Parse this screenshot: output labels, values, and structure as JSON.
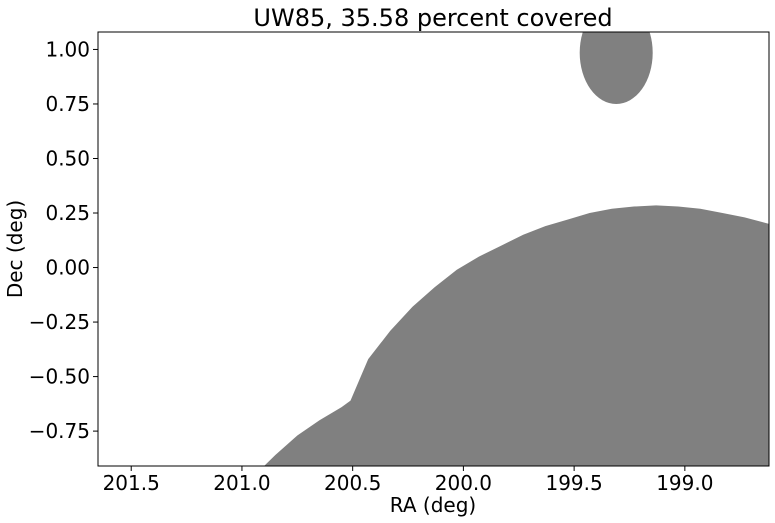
{
  "chart_data": {
    "type": "area",
    "title": "UW85, 35.58 percent covered",
    "xlabel": "RA (deg)",
    "ylabel": "Dec (deg)",
    "x_inverted": true,
    "xlim": [
      201.65,
      198.62
    ],
    "ylim": [
      -0.91,
      1.08
    ],
    "xticks": [
      201.5,
      201.0,
      200.5,
      200.0,
      199.5,
      199.0
    ],
    "xtick_labels": [
      "201.5",
      "201.0",
      "200.5",
      "200.0",
      "199.5",
      "199.0"
    ],
    "yticks": [
      1.0,
      0.75,
      0.5,
      0.25,
      0.0,
      -0.25,
      -0.5,
      -0.75
    ],
    "ytick_labels": [
      "1.00",
      "0.75",
      "0.50",
      "0.25",
      "0.00",
      "−0.25",
      "−0.50",
      "−0.75"
    ],
    "grid": false,
    "fill_color": "#808080",
    "covered_region": {
      "ra": [
        200.9,
        200.85,
        200.75,
        200.65,
        200.55,
        200.51,
        200.43,
        200.33,
        200.23,
        200.13,
        200.03,
        199.93,
        199.83,
        199.73,
        199.63,
        199.53,
        199.43,
        199.33,
        199.23,
        199.13,
        199.03,
        198.93,
        198.83,
        198.73,
        198.62
      ],
      "dec": [
        -0.91,
        -0.86,
        -0.77,
        -0.7,
        -0.64,
        -0.61,
        -0.42,
        -0.29,
        -0.18,
        -0.09,
        -0.01,
        0.05,
        0.1,
        0.15,
        0.19,
        0.22,
        0.25,
        0.27,
        0.28,
        0.285,
        0.28,
        0.27,
        0.25,
        0.23,
        0.2
      ]
    },
    "covered_circle": {
      "ra": 199.31,
      "dec": 0.985,
      "radius_ra": 0.165,
      "radius_dec": 0.235
    }
  }
}
